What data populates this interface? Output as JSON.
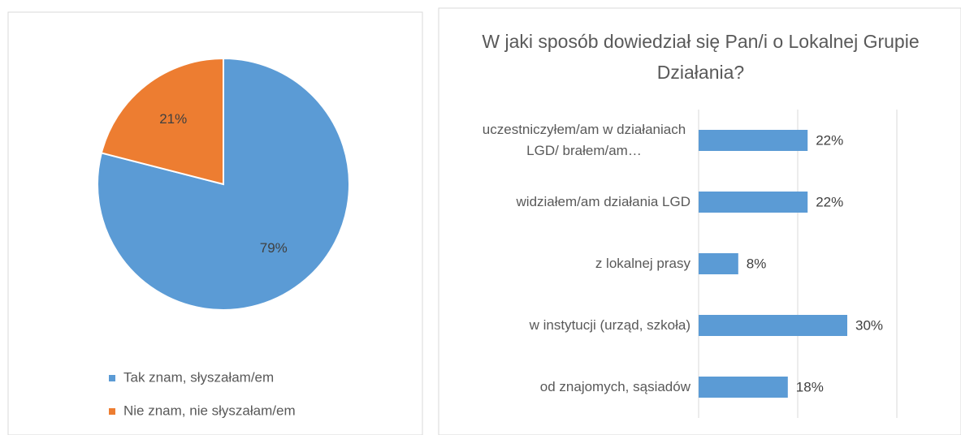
{
  "chart_data": [
    {
      "type": "pie",
      "labels": [
        "Tak znam, słyszałam/em",
        "Nie znam, nie słyszałam/em"
      ],
      "values": [
        79,
        21
      ],
      "value_labels": [
        "79%",
        "21%"
      ],
      "colors": [
        "#5b9bd5",
        "#ed7d31"
      ],
      "legend": "bottom"
    },
    {
      "type": "barh",
      "title": "W jaki sposób dowiedział się Pan/i o Lokalnej Grupie Działania?",
      "categories": [
        "uczestniczyłem/am w działaniach LGD/ brałem/am…",
        "widziałem/am działania LGD",
        "z lokalnej prasy",
        "w instytucji (urząd, szkoła)",
        "od znajomych, sąsiadów"
      ],
      "values": [
        22,
        22,
        8,
        30,
        18
      ],
      "value_labels": [
        "22%",
        "22%",
        "8%",
        "30%",
        "18%"
      ],
      "color": "#5b9bd5",
      "xlim": [
        0,
        40
      ],
      "xticks": [
        0,
        20,
        40
      ],
      "grid": true
    }
  ]
}
